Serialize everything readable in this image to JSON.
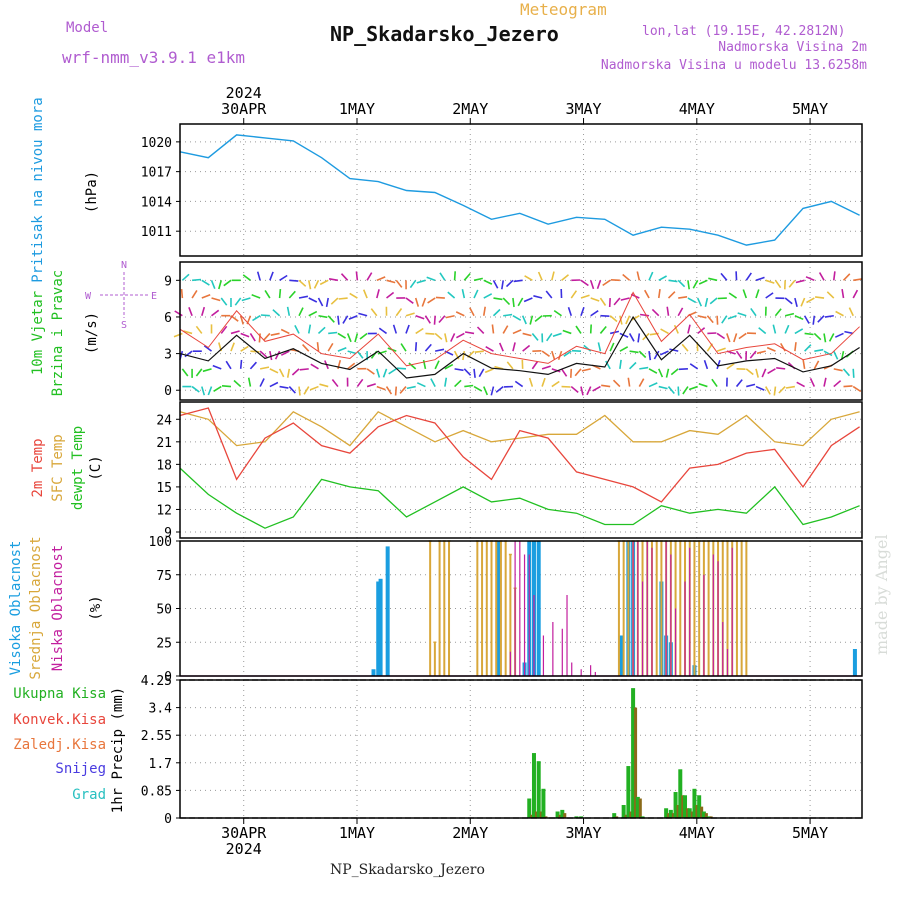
{
  "header": {
    "model_label": "Model",
    "model_name": "wrf-nmm_v3.9.1 e1km",
    "product": "Meteogram",
    "station": "NP_Skadarsko_Jezero",
    "lonlat": "lon,lat (19.15E, 42.2812N)",
    "elevation": "Nadmorska Visina 2m",
    "model_elevation": "Nadmorska Visina u modelu 13.6258m",
    "watermark": "made by Angel",
    "bottom_name": "NP_Skadarsko_Jezero"
  },
  "colors": {
    "pressure": "#1e9be0",
    "t2m": "#e8463c",
    "sfc": "#d8a73a",
    "dewpt": "#22c022",
    "high_cloud": "#1a9ee0",
    "mid_cloud": "#d8a73a",
    "low_cloud": "#c21e9e",
    "total_precip": "#22b022",
    "conv_precip": "#e8463c",
    "frozen_precip": "#e8763c",
    "snow": "#4a3ce0",
    "hail": "#28c0c0",
    "wind_speed": "#111111",
    "wind_gust": "#e8463c",
    "grid": "#9a9a9a"
  },
  "time_axis": {
    "top_year": "2024",
    "bottom_year": "2024",
    "day_labels": [
      "30APR",
      "1MAY",
      "2MAY",
      "3MAY",
      "4MAY",
      "5MAY"
    ]
  },
  "wind_compass": {
    "north": "N",
    "south": "S",
    "east": "E",
    "west": "W"
  },
  "chart_data": [
    {
      "type": "line",
      "panel": "pressure",
      "ylabel_main": "Pritisak na nivou mora",
      "ylabel_unit": "(hPa)",
      "yticks": [
        1011,
        1014,
        1017,
        1020
      ],
      "ylim": [
        1008.5,
        1021.8
      ],
      "x_hours": [
        0,
        6,
        12,
        18,
        24,
        30,
        36,
        42,
        48,
        54,
        60,
        66,
        72,
        78,
        84,
        90,
        96,
        102,
        108,
        114,
        120,
        126,
        132,
        138,
        144
      ],
      "values": [
        1019.0,
        1018.4,
        1020.7,
        1020.4,
        1020.1,
        1018.4,
        1016.3,
        1016.0,
        1015.1,
        1014.9,
        1013.6,
        1012.2,
        1012.8,
        1011.7,
        1012.4,
        1012.2,
        1010.6,
        1011.4,
        1011.2,
        1010.6,
        1009.6,
        1010.1,
        1013.3,
        1014.0,
        1012.6
      ]
    },
    {
      "type": "line",
      "panel": "wind",
      "ylabel_main": "10m Vjetar",
      "ylabel_sub": "Brzina i Pravac",
      "ylabel_unit": "(m/s)",
      "yticks": [
        0,
        3,
        6,
        9
      ],
      "ylim": [
        -0.8,
        10.5
      ],
      "x_hours": [
        0,
        6,
        12,
        18,
        24,
        30,
        36,
        42,
        48,
        54,
        60,
        66,
        72,
        78,
        84,
        90,
        96,
        102,
        108,
        114,
        120,
        126,
        132,
        138,
        144
      ],
      "series": [
        {
          "values": [
            3.0,
            2.4,
            4.5,
            2.6,
            3.4,
            2.2,
            1.7,
            3.2,
            1.0,
            1.3,
            3.0,
            1.8,
            1.6,
            1.3,
            2.2,
            1.9,
            6.0,
            2.5,
            4.5,
            2.0,
            2.4,
            2.6,
            1.5,
            2.0,
            3.5
          ]
        },
        {
          "values": [
            5.0,
            3.5,
            6.5,
            4.0,
            4.6,
            3.0,
            2.6,
            4.6,
            2.0,
            2.5,
            4.1,
            3.0,
            2.6,
            2.2,
            3.6,
            3.0,
            8.0,
            4.0,
            6.2,
            3.0,
            3.5,
            3.8,
            2.5,
            3.0,
            5.2
          ]
        }
      ]
    },
    {
      "type": "line",
      "panel": "temperature",
      "ylabel_t2m": "2m Temp",
      "ylabel_sfc": "SFC Temp",
      "ylabel_dew": "dewpt Temp",
      "ylabel_unit": "(C)",
      "yticks": [
        9,
        12,
        15,
        18,
        21,
        24
      ],
      "ylim": [
        8.2,
        26.3
      ],
      "x_hours": [
        0,
        6,
        12,
        18,
        24,
        30,
        36,
        42,
        48,
        54,
        60,
        66,
        72,
        78,
        84,
        90,
        96,
        102,
        108,
        114,
        120,
        126,
        132,
        138,
        144
      ],
      "series": [
        {
          "values": [
            24.5,
            25.5,
            16.0,
            21.5,
            23.5,
            20.5,
            19.5,
            23.0,
            24.5,
            23.5,
            19.0,
            16.0,
            22.5,
            21.5,
            17.0,
            16.0,
            15.0,
            13.0,
            17.5,
            18.0,
            19.5,
            20.0,
            15.0,
            20.5,
            23.0
          ]
        },
        {
          "values": [
            25.0,
            24.0,
            20.5,
            21.0,
            25.0,
            23.0,
            20.5,
            25.0,
            23.0,
            21.0,
            22.5,
            21.0,
            21.5,
            22.0,
            22.0,
            24.5,
            21.0,
            21.0,
            22.5,
            22.0,
            24.5,
            21.0,
            20.5,
            24.0,
            25.0
          ]
        },
        {
          "values": [
            17.5,
            14.0,
            11.5,
            9.5,
            11.0,
            16.0,
            15.0,
            14.5,
            11.0,
            13.0,
            15.0,
            13.0,
            13.5,
            12.0,
            11.5,
            10.0,
            10.0,
            12.5,
            11.5,
            12.0,
            11.5,
            15.0,
            10.0,
            11.0,
            12.5
          ]
        }
      ]
    },
    {
      "type": "bar",
      "panel": "clouds",
      "ylabel_high": "Visoka Oblacnost",
      "ylabel_mid": "Srednja Oblacnost",
      "ylabel_low": "Niska Oblacnost",
      "ylabel_unit": "(%)",
      "yticks": [
        0,
        25,
        50,
        75,
        100
      ],
      "ylim": [
        0,
        100
      ],
      "series": [
        {
          "x_hours": [
            41,
            42,
            42.5,
            44,
            67.5,
            73,
            74,
            75,
            76,
            93.5,
            95,
            96,
            102,
            103,
            104,
            109,
            143
          ],
          "values": [
            5,
            70,
            72,
            96,
            100,
            10,
            100,
            100,
            100,
            30,
            100,
            100,
            70,
            30,
            25,
            8,
            20
          ]
        },
        {
          "x_hours": [
            53,
            54,
            55,
            56,
            57,
            63,
            64,
            65,
            66,
            67,
            68,
            69,
            70,
            71,
            93,
            94,
            95,
            96,
            97,
            98,
            99,
            100,
            101,
            102,
            103,
            104,
            105,
            106,
            107,
            108,
            109,
            110,
            111,
            112,
            113,
            114,
            115,
            116,
            117,
            118,
            119,
            120
          ],
          "values": [
            100,
            25,
            100,
            100,
            100,
            100,
            100,
            100,
            100,
            100,
            100,
            100,
            90,
            65,
            100,
            100,
            100,
            100,
            100,
            100,
            100,
            100,
            100,
            100,
            100,
            100,
            100,
            100,
            100,
            100,
            100,
            100,
            100,
            100,
            100,
            100,
            100,
            100,
            100,
            100,
            100,
            100
          ]
        },
        {
          "x_hours": [
            70,
            71,
            72,
            73,
            74,
            75,
            77,
            79,
            81,
            82,
            83,
            85,
            87,
            88,
            96,
            97,
            98,
            99,
            100,
            103,
            104,
            105,
            107,
            108,
            111,
            113,
            114,
            115,
            116,
            117
          ],
          "values": [
            18,
            100,
            100,
            90,
            90,
            60,
            30,
            40,
            35,
            60,
            10,
            5,
            8,
            3,
            100,
            100,
            70,
            100,
            95,
            100,
            90,
            50,
            70,
            95,
            75,
            90,
            85,
            40,
            20,
            95
          ]
        }
      ]
    },
    {
      "type": "bar",
      "panel": "precip",
      "ylabel_main": "1hr Precip (mm)",
      "legend": [
        "Ukupna Kisa",
        "Konvek.Kisa",
        "Zaledj.Kisa",
        "Snijeg",
        "Grad"
      ],
      "yticks": [
        0,
        0.85,
        1.7,
        2.55,
        3.4,
        4.25
      ],
      "ylim": [
        0,
        4.25
      ],
      "x_hours": [
        74,
        75,
        76,
        77,
        80,
        81,
        84,
        85,
        92,
        94,
        95,
        96,
        97,
        98,
        103,
        104,
        105,
        106,
        107,
        108,
        109,
        110,
        111,
        112
      ],
      "series": [
        {
          "values": [
            0.6,
            2.0,
            1.75,
            0.9,
            0.2,
            0.25,
            0.05,
            0.05,
            0.15,
            0.4,
            1.6,
            4.0,
            0.65,
            0.05,
            0.3,
            0.25,
            0.8,
            1.5,
            0.7,
            0.3,
            0.9,
            0.7,
            0.2,
            0.05
          ]
        },
        {
          "values": [
            0.1,
            0.2,
            0.2,
            0.05,
            0.1,
            0.15,
            0,
            0,
            0.05,
            0.1,
            0.2,
            3.4,
            0.6,
            0,
            0.15,
            0.15,
            0.4,
            0.7,
            0.3,
            0.2,
            0.4,
            0.35,
            0.15,
            0.05
          ]
        }
      ]
    }
  ]
}
